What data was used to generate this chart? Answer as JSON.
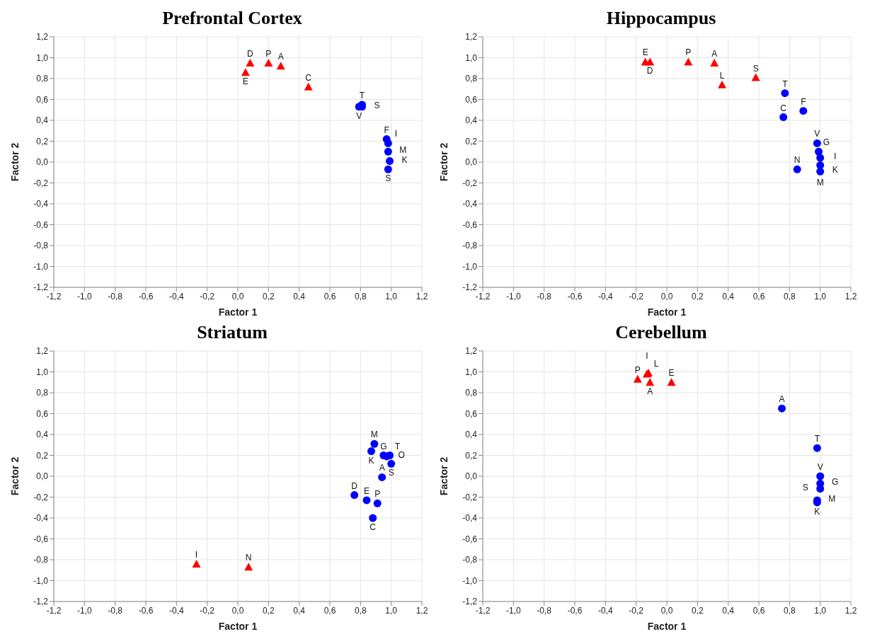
{
  "chart_data": [
    {
      "type": "scatter",
      "title": "Prefrontal Cortex",
      "xlabel": "Factor 1",
      "ylabel": "Factor 2",
      "xlim": [
        -1.2,
        1.2
      ],
      "ylim": [
        -1.2,
        1.2
      ],
      "xticks": [
        {
          "value": -1.2,
          "label": "-1,2"
        },
        {
          "value": -1.0,
          "label": "-1,0"
        },
        {
          "value": -0.8,
          "label": "-0,8"
        },
        {
          "value": -0.6,
          "label": "-0,6"
        },
        {
          "value": -0.4,
          "label": "-0,4"
        },
        {
          "value": -0.2,
          "label": "-0,2"
        },
        {
          "value": 0,
          "label": "0,0"
        },
        {
          "value": 0.2,
          "label": "0,2"
        },
        {
          "value": 0.4,
          "label": "0,4"
        },
        {
          "value": 0.6,
          "label": "0,6"
        },
        {
          "value": 0.8,
          "label": "0,8"
        },
        {
          "value": 1.0,
          "label": "1,0"
        },
        {
          "value": 1.2,
          "label": "1,2"
        }
      ],
      "yticks": [
        {
          "value": -1.2,
          "label": "-1,2"
        },
        {
          "value": -1.0,
          "label": "-1,0"
        },
        {
          "value": -0.8,
          "label": "-0,8"
        },
        {
          "value": -0.6,
          "label": "-0,6"
        },
        {
          "value": -0.4,
          "label": "-0,4"
        },
        {
          "value": -0.2,
          "label": "-0,2"
        },
        {
          "value": 0,
          "label": "0,0"
        },
        {
          "value": 0.2,
          "label": "0,2"
        },
        {
          "value": 0.4,
          "label": "0,4"
        },
        {
          "value": 0.6,
          "label": "0,6"
        },
        {
          "value": 0.8,
          "label": "0,8"
        },
        {
          "value": 1.0,
          "label": "1,0"
        },
        {
          "value": 1.2,
          "label": "1,2"
        }
      ],
      "grid": true,
      "series": [
        {
          "marker": "triangle",
          "color": "#ff0000",
          "x": [
            0.05,
            0.08,
            0.2,
            0.28,
            0.46
          ],
          "values": [
            0.86,
            0.95,
            0.95,
            0.92,
            0.72
          ],
          "value_labels": [
            "E",
            "D",
            "P",
            "A",
            "C"
          ]
        },
        {
          "marker": "circle",
          "color": "#0000ff",
          "x": [
            0.79,
            0.81,
            0.81,
            0.97,
            0.98,
            0.98,
            0.99,
            0.98
          ],
          "values": [
            0.53,
            0.55,
            0.53,
            0.22,
            0.18,
            0.1,
            0.01,
            -0.07
          ],
          "value_labels": [
            "V",
            "T",
            "S",
            "F",
            "I",
            "M",
            "K",
            "S"
          ]
        }
      ]
    },
    {
      "type": "scatter",
      "title": "Hippocampus",
      "xlabel": "Factor 1",
      "ylabel": "Factor 2",
      "xlim": [
        -1.2,
        1.2
      ],
      "ylim": [
        -1.2,
        1.2
      ],
      "xticks": [
        {
          "value": -1.2,
          "label": "-1,2"
        },
        {
          "value": -1.0,
          "label": "-1,0"
        },
        {
          "value": -0.8,
          "label": "-0,8"
        },
        {
          "value": -0.6,
          "label": "-0,6"
        },
        {
          "value": -0.4,
          "label": "-0,4"
        },
        {
          "value": -0.2,
          "label": "-0,2"
        },
        {
          "value": 0,
          "label": "0,0"
        },
        {
          "value": 0.2,
          "label": "0,2"
        },
        {
          "value": 0.4,
          "label": "0,4"
        },
        {
          "value": 0.6,
          "label": "0,6"
        },
        {
          "value": 0.8,
          "label": "0,8"
        },
        {
          "value": 1.0,
          "label": "1,0"
        },
        {
          "value": 1.2,
          "label": "1,2"
        }
      ],
      "yticks": [
        {
          "value": -1.2,
          "label": "-1,2"
        },
        {
          "value": -1.0,
          "label": "-1,0"
        },
        {
          "value": -0.8,
          "label": "-0,8"
        },
        {
          "value": -0.6,
          "label": "-0,6"
        },
        {
          "value": -0.4,
          "label": "-0,4"
        },
        {
          "value": -0.2,
          "label": "-0,2"
        },
        {
          "value": 0,
          "label": "0,0"
        },
        {
          "value": 0.2,
          "label": "0,2"
        },
        {
          "value": 0.4,
          "label": "0,4"
        },
        {
          "value": 0.6,
          "label": "0,6"
        },
        {
          "value": 0.8,
          "label": "0,8"
        },
        {
          "value": 1.0,
          "label": "1,0"
        },
        {
          "value": 1.2,
          "label": "1,2"
        }
      ],
      "grid": true,
      "series": [
        {
          "marker": "triangle",
          "color": "#ff0000",
          "x": [
            -0.14,
            -0.11,
            0.14,
            0.31,
            0.36,
            0.58
          ],
          "values": [
            0.96,
            0.96,
            0.96,
            0.95,
            0.74,
            0.81
          ],
          "value_labels": [
            "E",
            "D",
            "P",
            "A",
            "L",
            "S"
          ]
        },
        {
          "marker": "circle",
          "color": "#0000ff",
          "x": [
            0.77,
            0.76,
            0.89,
            0.85,
            0.98,
            0.99,
            1.0,
            1.0,
            1.0
          ],
          "values": [
            0.66,
            0.43,
            0.49,
            -0.07,
            0.18,
            0.1,
            0.04,
            -0.03,
            -0.09
          ],
          "value_labels": [
            "T",
            "C",
            "F",
            "N",
            "V",
            "G",
            "I",
            "M",
            "K"
          ]
        }
      ]
    },
    {
      "type": "scatter",
      "title": "Striatum",
      "xlabel": "Factor 1",
      "ylabel": "Factor 2",
      "xlim": [
        -1.2,
        1.2
      ],
      "ylim": [
        -1.2,
        1.2
      ],
      "xticks": [
        {
          "value": -1.2,
          "label": "-1,2"
        },
        {
          "value": -1.0,
          "label": "-1,0"
        },
        {
          "value": -0.8,
          "label": "-0,8"
        },
        {
          "value": -0.6,
          "label": "-0,6"
        },
        {
          "value": -0.4,
          "label": "-0,4"
        },
        {
          "value": -0.2,
          "label": "-0,2"
        },
        {
          "value": 0,
          "label": "0,0"
        },
        {
          "value": 0.2,
          "label": "0,2"
        },
        {
          "value": 0.4,
          "label": "0,4"
        },
        {
          "value": 0.6,
          "label": "0,6"
        },
        {
          "value": 0.8,
          "label": "0,8"
        },
        {
          "value": 1.0,
          "label": "1,0"
        },
        {
          "value": 1.2,
          "label": "1,2"
        }
      ],
      "yticks": [
        {
          "value": -1.2,
          "label": "-1,2"
        },
        {
          "value": -1.0,
          "label": "-1,0"
        },
        {
          "value": -0.8,
          "label": "-0,8"
        },
        {
          "value": -0.6,
          "label": "-0,6"
        },
        {
          "value": -0.4,
          "label": "-0,4"
        },
        {
          "value": -0.2,
          "label": "-0,2"
        },
        {
          "value": 0,
          "label": "0,0"
        },
        {
          "value": 0.2,
          "label": "0,2"
        },
        {
          "value": 0.4,
          "label": "0,4"
        },
        {
          "value": 0.6,
          "label": "0,6"
        },
        {
          "value": 0.8,
          "label": "0,8"
        },
        {
          "value": 1.0,
          "label": "1,0"
        },
        {
          "value": 1.2,
          "label": "1,2"
        }
      ],
      "grid": true,
      "series": [
        {
          "marker": "triangle",
          "color": "#ff0000",
          "x": [
            -0.27,
            0.07
          ],
          "values": [
            -0.84,
            -0.87
          ],
          "value_labels": [
            "I",
            "N"
          ]
        },
        {
          "marker": "circle",
          "color": "#0000ff",
          "x": [
            0.89,
            0.87,
            0.95,
            0.97,
            0.99,
            1.0,
            0.94,
            0.76,
            0.84,
            0.91,
            0.88
          ],
          "values": [
            0.31,
            0.24,
            0.2,
            0.19,
            0.2,
            0.12,
            -0.01,
            -0.18,
            -0.23,
            -0.26,
            -0.4
          ],
          "value_labels": [
            "M",
            "K",
            "G",
            "O",
            "T",
            "S",
            "A",
            "D",
            "E",
            "P",
            "C"
          ]
        }
      ]
    },
    {
      "type": "scatter",
      "title": "Cerebellum",
      "xlabel": "Factor 1",
      "ylabel": "Factor 2",
      "xlim": [
        -1.2,
        1.2
      ],
      "ylim": [
        -1.2,
        1.2
      ],
      "xticks": [
        {
          "value": -1.2,
          "label": "-1,2"
        },
        {
          "value": -1.0,
          "label": "-1,0"
        },
        {
          "value": -0.8,
          "label": "-0,8"
        },
        {
          "value": -0.6,
          "label": "-0,6"
        },
        {
          "value": -0.4,
          "label": "-0,4"
        },
        {
          "value": -0.2,
          "label": "-0,2"
        },
        {
          "value": 0,
          "label": "0,0"
        },
        {
          "value": 0.2,
          "label": "0,2"
        },
        {
          "value": 0.4,
          "label": "0,4"
        },
        {
          "value": 0.6,
          "label": "0,6"
        },
        {
          "value": 0.8,
          "label": "0,8"
        },
        {
          "value": 1.0,
          "label": "1,0"
        },
        {
          "value": 1.2,
          "label": "1,2"
        }
      ],
      "yticks": [
        {
          "value": -1.2,
          "label": "-1,2"
        },
        {
          "value": -1.0,
          "label": "-1,0"
        },
        {
          "value": -0.8,
          "label": "-0,8"
        },
        {
          "value": -0.6,
          "label": "-0,6"
        },
        {
          "value": -0.4,
          "label": "-0,4"
        },
        {
          "value": -0.2,
          "label": "-0,2"
        },
        {
          "value": 0,
          "label": "0,0"
        },
        {
          "value": 0.2,
          "label": "0,2"
        },
        {
          "value": 0.4,
          "label": "0,4"
        },
        {
          "value": 0.6,
          "label": "0,6"
        },
        {
          "value": 0.8,
          "label": "0,8"
        },
        {
          "value": 1.0,
          "label": "1,0"
        },
        {
          "value": 1.2,
          "label": "1,2"
        }
      ],
      "grid": true,
      "series": [
        {
          "marker": "triangle",
          "color": "#ff0000",
          "x": [
            -0.19,
            -0.13,
            -0.12,
            -0.11,
            0.03
          ],
          "values": [
            0.93,
            0.98,
            0.99,
            0.9,
            0.9
          ],
          "value_labels": [
            "P",
            "I",
            "L",
            "A",
            "E"
          ]
        },
        {
          "marker": "circle",
          "color": "#0000ff",
          "x": [
            0.75,
            0.98,
            1.0,
            1.0,
            1.0,
            0.98,
            0.98
          ],
          "values": [
            0.65,
            0.27,
            0.0,
            -0.07,
            -0.12,
            -0.23,
            -0.25
          ],
          "value_labels": [
            "A",
            "T",
            "V",
            "G",
            "S",
            "M",
            "K"
          ]
        }
      ]
    }
  ]
}
